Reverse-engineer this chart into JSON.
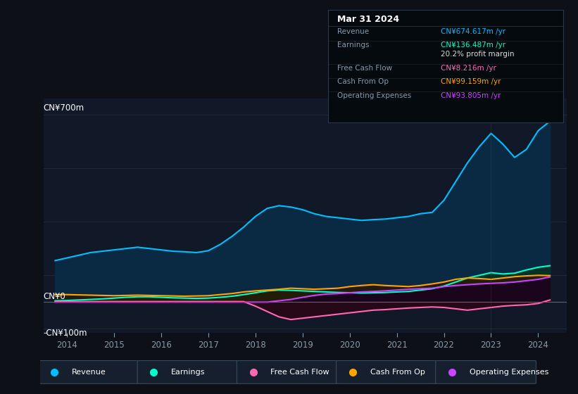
{
  "background_color": "#0d1117",
  "plot_bg_color": "#111827",
  "title": "Mar 31 2024",
  "y_label_top": "CN¥700m",
  "y_label_zero": "CN¥0",
  "y_label_neg": "-CN¥100m",
  "ylim": [
    -115,
    760
  ],
  "xlim": [
    2013.5,
    2024.6
  ],
  "x_ticks": [
    2014,
    2015,
    2016,
    2017,
    2018,
    2019,
    2020,
    2021,
    2022,
    2023,
    2024
  ],
  "grid_color": "#1e2d3d",
  "axis_color": "#4a5568",
  "text_color": "#8899aa",
  "info_box": {
    "bg": "#050a0f",
    "border": "#2d3748",
    "title": "Mar 31 2024",
    "title_color": "#ffffff",
    "rows": [
      {
        "label": "Revenue",
        "value": "CN¥674.617m /yr",
        "value_color": "#00bfff"
      },
      {
        "label": "Earnings",
        "value": "CN¥136.487m /yr",
        "value_color": "#00ffcc"
      },
      {
        "label": "",
        "value": "20.2% profit margin",
        "value_color": "#dddddd"
      },
      {
        "label": "Free Cash Flow",
        "value": "CN¥8.216m /yr",
        "value_color": "#ff69b4"
      },
      {
        "label": "Cash From Op",
        "value": "CN¥99.159m /yr",
        "value_color": "#ffa500"
      },
      {
        "label": "Operating Expenses",
        "value": "CN¥93.805m /yr",
        "value_color": "#cc44ff"
      }
    ],
    "label_color": "#8899aa"
  },
  "revenue": {
    "color": "#00bfff",
    "fill_color": "#0a2a44",
    "x": [
      2013.75,
      2014.0,
      2014.25,
      2014.5,
      2014.75,
      2015.0,
      2015.25,
      2015.5,
      2015.75,
      2016.0,
      2016.25,
      2016.5,
      2016.75,
      2017.0,
      2017.25,
      2017.5,
      2017.75,
      2018.0,
      2018.25,
      2018.5,
      2018.75,
      2019.0,
      2019.25,
      2019.5,
      2019.75,
      2020.0,
      2020.25,
      2020.5,
      2020.75,
      2021.0,
      2021.25,
      2021.5,
      2021.75,
      2022.0,
      2022.25,
      2022.5,
      2022.75,
      2023.0,
      2023.25,
      2023.5,
      2023.75,
      2024.0,
      2024.25
    ],
    "y": [
      155,
      165,
      175,
      185,
      190,
      195,
      200,
      205,
      200,
      195,
      190,
      188,
      185,
      192,
      215,
      245,
      280,
      320,
      350,
      360,
      355,
      345,
      330,
      320,
      315,
      310,
      305,
      308,
      310,
      315,
      320,
      330,
      335,
      380,
      450,
      520,
      580,
      630,
      590,
      540,
      570,
      640,
      675
    ]
  },
  "earnings": {
    "color": "#00ffcc",
    "fill_color": "#003322",
    "x": [
      2013.75,
      2014.0,
      2014.25,
      2014.5,
      2014.75,
      2015.0,
      2015.25,
      2015.5,
      2015.75,
      2016.0,
      2016.25,
      2016.5,
      2016.75,
      2017.0,
      2017.25,
      2017.5,
      2017.75,
      2018.0,
      2018.25,
      2018.5,
      2018.75,
      2019.0,
      2019.25,
      2019.5,
      2019.75,
      2020.0,
      2020.25,
      2020.5,
      2020.75,
      2021.0,
      2021.25,
      2021.5,
      2021.75,
      2022.0,
      2022.25,
      2022.5,
      2022.75,
      2023.0,
      2023.25,
      2023.5,
      2023.75,
      2024.0,
      2024.25
    ],
    "y": [
      5,
      6,
      8,
      10,
      12,
      15,
      18,
      20,
      20,
      18,
      16,
      15,
      14,
      15,
      18,
      22,
      28,
      35,
      42,
      45,
      44,
      42,
      40,
      38,
      36,
      35,
      34,
      35,
      36,
      38,
      40,
      45,
      50,
      60,
      75,
      90,
      100,
      110,
      105,
      108,
      120,
      130,
      136
    ]
  },
  "free_cash_flow": {
    "color": "#ff69b4",
    "fill_color": "#330011",
    "x": [
      2013.75,
      2014.0,
      2014.25,
      2014.5,
      2014.75,
      2015.0,
      2015.25,
      2015.5,
      2015.75,
      2016.0,
      2016.25,
      2016.5,
      2016.75,
      2017.0,
      2017.25,
      2017.5,
      2017.75,
      2018.0,
      2018.25,
      2018.5,
      2018.75,
      2019.0,
      2019.25,
      2019.5,
      2019.75,
      2020.0,
      2020.25,
      2020.5,
      2020.75,
      2021.0,
      2021.25,
      2021.5,
      2021.75,
      2022.0,
      2022.25,
      2022.5,
      2022.75,
      2023.0,
      2023.25,
      2023.5,
      2023.75,
      2024.0,
      2024.25
    ],
    "y": [
      2,
      2,
      2,
      2,
      2,
      2,
      2,
      2,
      2,
      2,
      2,
      2,
      2,
      2,
      2,
      2,
      2,
      -15,
      -35,
      -55,
      -65,
      -60,
      -55,
      -50,
      -45,
      -40,
      -35,
      -30,
      -28,
      -25,
      -22,
      -20,
      -18,
      -20,
      -25,
      -30,
      -25,
      -20,
      -15,
      -12,
      -10,
      -5,
      8
    ]
  },
  "cash_from_op": {
    "color": "#ffa500",
    "fill_color": "#2a1800",
    "x": [
      2013.75,
      2014.0,
      2014.25,
      2014.5,
      2014.75,
      2015.0,
      2015.25,
      2015.5,
      2015.75,
      2016.0,
      2016.25,
      2016.5,
      2016.75,
      2017.0,
      2017.25,
      2017.5,
      2017.75,
      2018.0,
      2018.25,
      2018.5,
      2018.75,
      2019.0,
      2019.25,
      2019.5,
      2019.75,
      2020.0,
      2020.25,
      2020.5,
      2020.75,
      2021.0,
      2021.25,
      2021.5,
      2021.75,
      2022.0,
      2022.25,
      2022.5,
      2022.75,
      2023.0,
      2023.25,
      2023.5,
      2023.75,
      2024.0,
      2024.25
    ],
    "y": [
      28,
      28,
      27,
      26,
      25,
      24,
      25,
      26,
      25,
      24,
      23,
      22,
      23,
      24,
      28,
      32,
      38,
      42,
      45,
      48,
      52,
      50,
      48,
      50,
      52,
      58,
      62,
      65,
      62,
      60,
      58,
      62,
      68,
      75,
      85,
      90,
      88,
      85,
      90,
      95,
      98,
      100,
      99
    ]
  },
  "operating_expenses": {
    "color": "#cc44ff",
    "fill_color": "#1a0022",
    "x": [
      2013.75,
      2014.0,
      2014.25,
      2014.5,
      2014.75,
      2015.0,
      2015.25,
      2015.5,
      2015.75,
      2016.0,
      2016.25,
      2016.5,
      2016.75,
      2017.0,
      2017.25,
      2017.5,
      2017.75,
      2018.0,
      2018.25,
      2018.5,
      2018.75,
      2019.0,
      2019.25,
      2019.5,
      2019.75,
      2020.0,
      2020.25,
      2020.5,
      2020.75,
      2021.0,
      2021.25,
      2021.5,
      2021.75,
      2022.0,
      2022.25,
      2022.5,
      2022.75,
      2023.0,
      2023.25,
      2023.5,
      2023.75,
      2024.0,
      2024.25
    ],
    "y": [
      0,
      0,
      0,
      0,
      0,
      0,
      0,
      0,
      0,
      0,
      0,
      0,
      0,
      0,
      0,
      0,
      0,
      0,
      0,
      5,
      10,
      18,
      25,
      30,
      32,
      35,
      38,
      40,
      42,
      45,
      48,
      50,
      52,
      58,
      62,
      65,
      68,
      70,
      72,
      75,
      80,
      85,
      94
    ]
  },
  "legend": [
    {
      "label": "Revenue",
      "color": "#00bfff"
    },
    {
      "label": "Earnings",
      "color": "#00ffcc"
    },
    {
      "label": "Free Cash Flow",
      "color": "#ff69b4"
    },
    {
      "label": "Cash From Op",
      "color": "#ffa500"
    },
    {
      "label": "Operating Expenses",
      "color": "#cc44ff"
    }
  ]
}
